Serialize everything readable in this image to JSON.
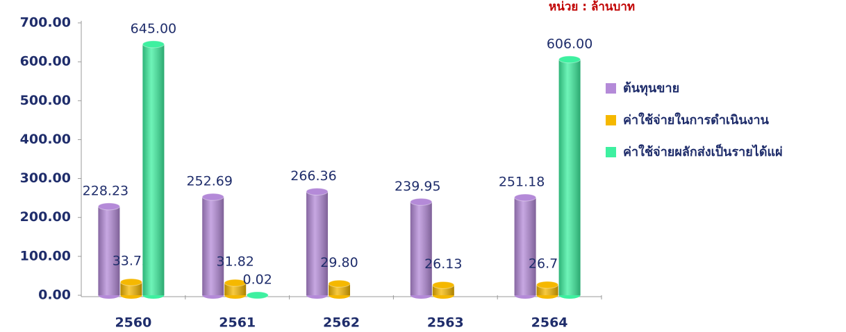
{
  "chart_data": {
    "type": "bar3d",
    "title": "หน่วย : ล้านบาท",
    "categories": [
      "2560",
      "2561",
      "2562",
      "2563",
      "2564"
    ],
    "series": [
      {
        "name": "ต้นทุนขาย",
        "color": "#b48ad8",
        "values": [
          228.23,
          252.69,
          266.36,
          239.95,
          251.18
        ],
        "value_labels": [
          "228.23",
          "252.69",
          "266.36",
          "239.95",
          "251.18"
        ]
      },
      {
        "name": "ค่าใช้จ่ายในการดำเนินงาน",
        "color": "#f5b800",
        "values": [
          33.72,
          31.82,
          29.8,
          26.13,
          26.77
        ],
        "value_labels": [
          "33.72",
          "31.82",
          "29.80",
          "26.13",
          "26.77"
        ]
      },
      {
        "name": "ค่าใช้จ่ายผลักส่งเป็นรายได้แผ่",
        "color": "#3ef0a0",
        "values": [
          645.0,
          0.02,
          null,
          null,
          606.0
        ],
        "value_labels": [
          "645.00",
          "0.02",
          null,
          null,
          "606.00"
        ]
      }
    ],
    "ylim": [
      0,
      700
    ],
    "yticks": [
      {
        "value": 0,
        "label": "0.00"
      },
      {
        "value": 100,
        "label": "100.00"
      },
      {
        "value": 200,
        "label": "200.00"
      },
      {
        "value": 300,
        "label": "300.00"
      },
      {
        "value": 400,
        "label": "400.00"
      },
      {
        "value": 500,
        "label": "500.00"
      },
      {
        "value": 600,
        "label": "600.00"
      },
      {
        "value": 700,
        "label": "700.00"
      }
    ]
  }
}
